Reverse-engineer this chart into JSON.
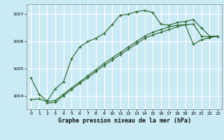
{
  "title": "Graphe pression niveau de la mer (hPa)",
  "bg_color": "#caeaf5",
  "grid_color": "#ffffff",
  "line_color": "#2d6a2d",
  "xlim": [
    -0.5,
    23.5
  ],
  "ylim": [
    1003.5,
    1007.35
  ],
  "yticks": [
    1004,
    1005,
    1006,
    1007
  ],
  "xticks": [
    0,
    1,
    2,
    3,
    4,
    5,
    6,
    7,
    8,
    9,
    10,
    11,
    12,
    13,
    14,
    15,
    16,
    17,
    18,
    19,
    20,
    21,
    22,
    23
  ],
  "series1_x": [
    0,
    1,
    2,
    3,
    4,
    5,
    6,
    7,
    8,
    9,
    10,
    11,
    12,
    13,
    14,
    15,
    16,
    17,
    18,
    19,
    20,
    21,
    22,
    23
  ],
  "series1_y": [
    1004.65,
    1004.05,
    1003.8,
    1004.25,
    1004.5,
    1005.35,
    1005.78,
    1005.98,
    1006.1,
    1006.28,
    1006.6,
    1006.95,
    1006.98,
    1007.08,
    1007.12,
    1007.05,
    1006.62,
    1006.58,
    1006.68,
    1006.72,
    1006.78,
    1006.48,
    1006.18,
    1006.18
  ],
  "series2_x": [
    0,
    1,
    2,
    3,
    4,
    5,
    6,
    7,
    8,
    9,
    10,
    11,
    12,
    13,
    14,
    15,
    16,
    17,
    18,
    19,
    20,
    21,
    22,
    23
  ],
  "series2_y": [
    1003.85,
    1003.88,
    1003.78,
    1003.82,
    1004.05,
    1004.28,
    1004.5,
    1004.72,
    1004.95,
    1005.18,
    1005.38,
    1005.58,
    1005.78,
    1005.98,
    1006.18,
    1006.32,
    1006.42,
    1006.52,
    1006.58,
    1006.6,
    1006.62,
    1006.18,
    1006.15,
    1006.18
  ],
  "series3_x": [
    2,
    3,
    4,
    5,
    6,
    7,
    8,
    9,
    10,
    11,
    12,
    13,
    14,
    15,
    16,
    17,
    18,
    19,
    20,
    21,
    22,
    23
  ],
  "series3_y": [
    1003.72,
    1003.75,
    1004.0,
    1004.22,
    1004.45,
    1004.65,
    1004.88,
    1005.1,
    1005.3,
    1005.5,
    1005.7,
    1005.9,
    1006.1,
    1006.22,
    1006.32,
    1006.42,
    1006.52,
    1006.6,
    1005.88,
    1006.05,
    1006.12,
    1006.18
  ]
}
